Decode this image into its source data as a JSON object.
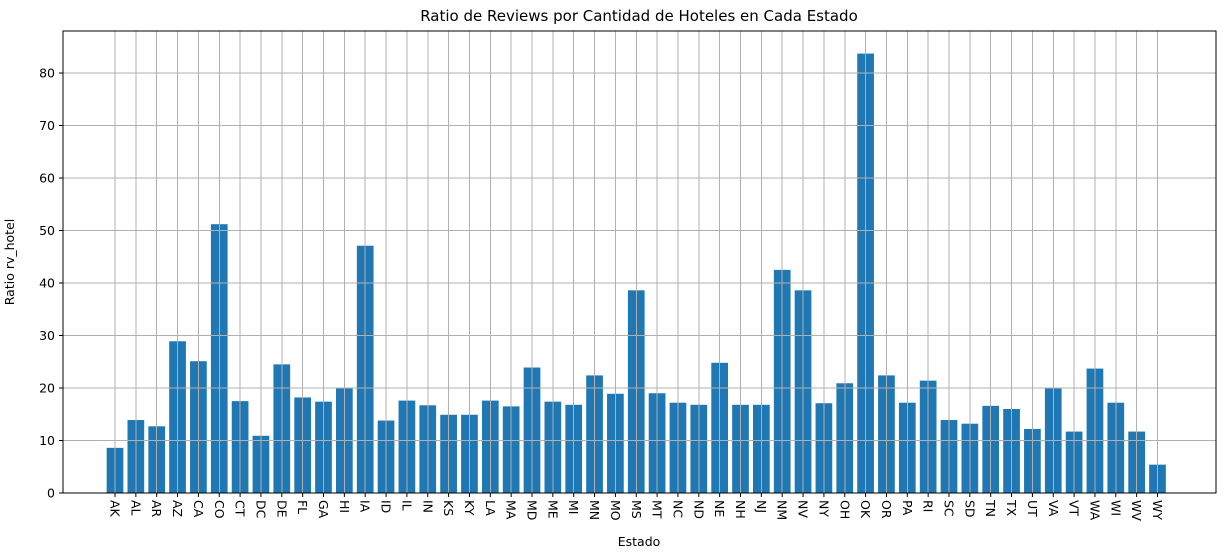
{
  "chart_data": {
    "type": "bar",
    "title": "Ratio de Reviews por Cantidad de Hoteles en Cada Estado",
    "xlabel": "Estado",
    "ylabel": "Ratio rv_hotel",
    "categories": [
      "AK",
      "AL",
      "AR",
      "AZ",
      "CA",
      "CO",
      "CT",
      "DC",
      "DE",
      "FL",
      "GA",
      "HI",
      "IA",
      "ID",
      "IL",
      "IN",
      "KS",
      "KY",
      "LA",
      "MA",
      "MD",
      "ME",
      "MI",
      "MN",
      "MO",
      "MS",
      "MT",
      "NC",
      "ND",
      "NE",
      "NH",
      "NJ",
      "NM",
      "NV",
      "NY",
      "OH",
      "OK",
      "OR",
      "PA",
      "RI",
      "SC",
      "SD",
      "TN",
      "TX",
      "UT",
      "VA",
      "VT",
      "WA",
      "WI",
      "WV",
      "WY"
    ],
    "values": [
      8.6,
      13.9,
      12.7,
      28.9,
      25.1,
      51.2,
      17.5,
      10.9,
      24.5,
      18.2,
      17.4,
      19.9,
      47.1,
      13.8,
      17.6,
      16.7,
      14.9,
      14.9,
      17.6,
      16.5,
      23.9,
      17.4,
      16.8,
      22.4,
      18.9,
      38.6,
      19.0,
      17.2,
      16.8,
      24.8,
      16.8,
      16.8,
      42.5,
      38.6,
      17.1,
      20.9,
      83.7,
      22.4,
      17.2,
      21.4,
      13.9,
      13.2,
      16.6,
      16.0,
      12.2,
      19.9,
      11.7,
      23.7,
      17.2,
      11.7,
      5.4
    ],
    "ylim": [
      0,
      88
    ],
    "yticks": [
      0,
      10,
      20,
      30,
      40,
      50,
      60,
      70,
      80
    ],
    "grid": true,
    "legend": "none",
    "bar_color": "#1f77b4",
    "grid_color": "#b0b0b0",
    "spine_color": "#000000"
  }
}
